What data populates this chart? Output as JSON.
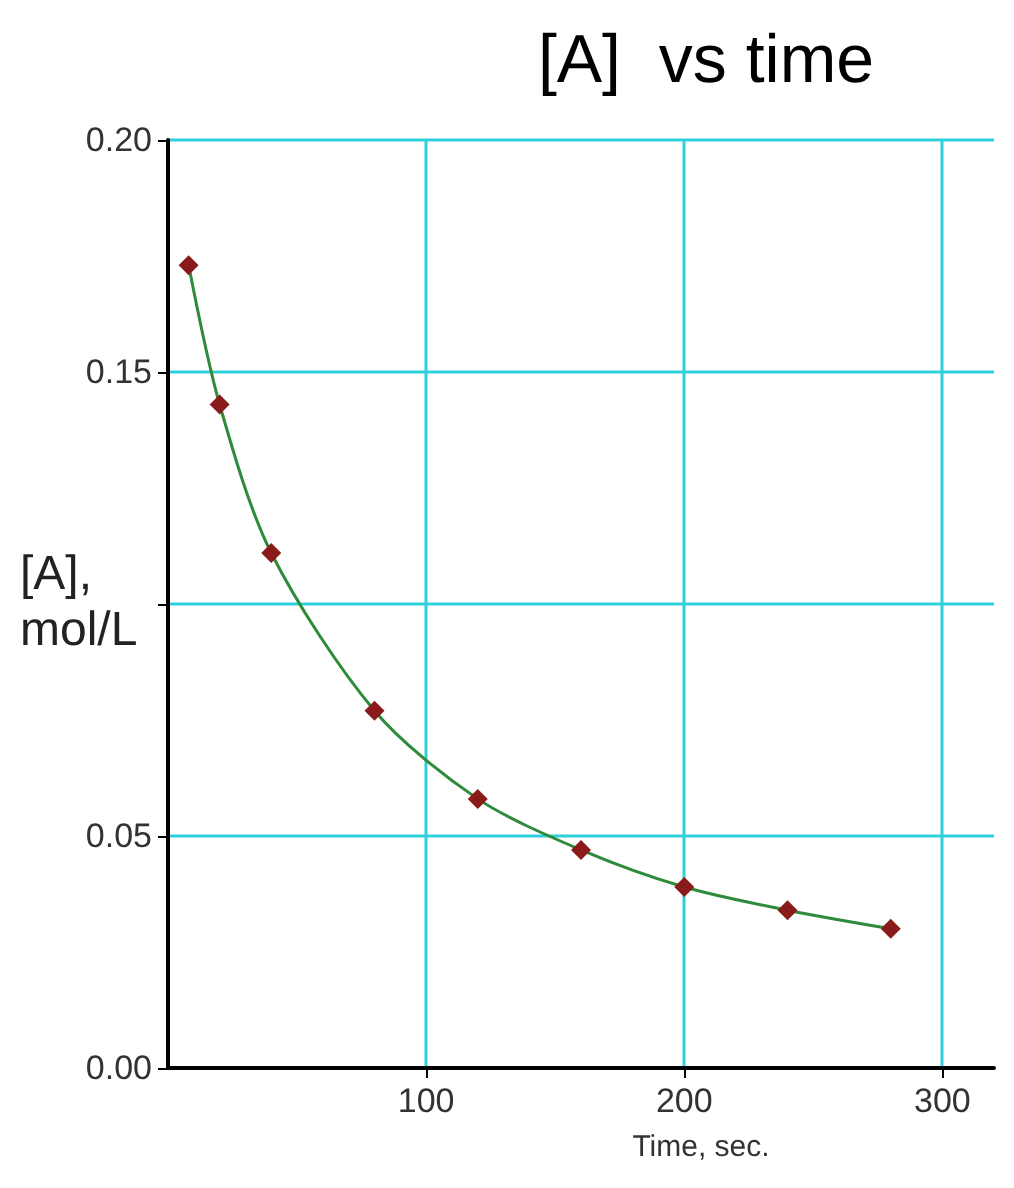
{
  "chart_data": {
    "type": "line",
    "title": "[A]  vs time",
    "xlabel": "Time, sec.",
    "ylabel": "[A], mol/L",
    "x": [
      8,
      20,
      40,
      80,
      120,
      160,
      200,
      240,
      280
    ],
    "series": [
      {
        "color": "#8b1a1a",
        "values": [
          0.173,
          0.143,
          0.111,
          0.077,
          0.058,
          0.047,
          0.039,
          0.034,
          0.03
        ]
      }
    ],
    "xlim": [
      0,
      320
    ],
    "xticks": [
      100,
      200,
      300
    ],
    "ylim": [
      0,
      0.2
    ],
    "yticks": [
      {
        "value": 0,
        "label": "0.00"
      },
      0.05,
      {
        "value": 0.1,
        "label": null
      },
      0.15,
      {
        "value": 0.2,
        "label": "0.20"
      }
    ],
    "grid": true,
    "marker": "diamond",
    "line_style": "solid"
  }
}
